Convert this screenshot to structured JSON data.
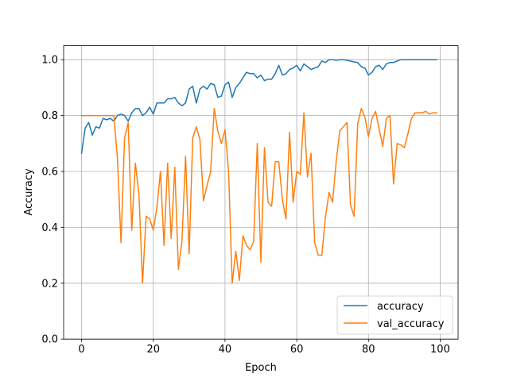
{
  "chart_data": {
    "type": "line",
    "title": "",
    "xlabel": "Epoch",
    "ylabel": "Accuracy",
    "xlim": [
      -5,
      105
    ],
    "ylim": [
      0,
      1.05
    ],
    "xticks": [
      0,
      20,
      40,
      60,
      80,
      100
    ],
    "yticks": [
      0.0,
      0.2,
      0.4,
      0.6,
      0.8,
      1.0
    ],
    "xtick_labels": [
      "0",
      "20",
      "40",
      "60",
      "80",
      "100"
    ],
    "ytick_labels": [
      "0.0",
      "0.2",
      "0.4",
      "0.6",
      "0.8",
      "1.0"
    ],
    "grid": true,
    "legend_position": "lower-right",
    "x": [
      0,
      1,
      2,
      3,
      4,
      5,
      6,
      7,
      8,
      9,
      10,
      11,
      12,
      13,
      14,
      15,
      16,
      17,
      18,
      19,
      20,
      21,
      22,
      23,
      24,
      25,
      26,
      27,
      28,
      29,
      30,
      31,
      32,
      33,
      34,
      35,
      36,
      37,
      38,
      39,
      40,
      41,
      42,
      43,
      44,
      45,
      46,
      47,
      48,
      49,
      50,
      51,
      52,
      53,
      54,
      55,
      56,
      57,
      58,
      59,
      60,
      61,
      62,
      63,
      64,
      65,
      66,
      67,
      68,
      69,
      70,
      71,
      72,
      73,
      74,
      75,
      76,
      77,
      78,
      79,
      80,
      81,
      82,
      83,
      84,
      85,
      86,
      87,
      88,
      89,
      90,
      91,
      92,
      93,
      94,
      95,
      96,
      97,
      98,
      99
    ],
    "series": [
      {
        "name": "accuracy",
        "color": "#1f77b4",
        "values": [
          0.665,
          0.755,
          0.775,
          0.73,
          0.76,
          0.755,
          0.79,
          0.785,
          0.79,
          0.78,
          0.8,
          0.805,
          0.8,
          0.78,
          0.81,
          0.825,
          0.825,
          0.8,
          0.81,
          0.83,
          0.805,
          0.845,
          0.845,
          0.845,
          0.86,
          0.86,
          0.865,
          0.845,
          0.835,
          0.845,
          0.895,
          0.905,
          0.845,
          0.895,
          0.905,
          0.895,
          0.915,
          0.91,
          0.865,
          0.87,
          0.91,
          0.92,
          0.865,
          0.9,
          0.915,
          0.935,
          0.955,
          0.95,
          0.95,
          0.935,
          0.945,
          0.925,
          0.93,
          0.93,
          0.95,
          0.98,
          0.945,
          0.95,
          0.965,
          0.97,
          0.98,
          0.96,
          0.985,
          0.975,
          0.965,
          0.97,
          0.975,
          0.995,
          0.99,
          1.0,
          1.0,
          0.998,
          1.0,
          1.0,
          0.998,
          0.995,
          0.992,
          0.99,
          0.975,
          0.97,
          0.945,
          0.955,
          0.975,
          0.98,
          0.965,
          0.985,
          0.99,
          0.99,
          0.995,
          1.0,
          1.0,
          1.0,
          1.0,
          1.0,
          1.0,
          1.0,
          1.0,
          1.0,
          1.0,
          1.0
        ]
      },
      {
        "name": "val_accuracy",
        "color": "#ff7f0e",
        "values": [
          0.8,
          0.8,
          0.8,
          0.8,
          0.8,
          0.8,
          0.8,
          0.8,
          0.8,
          0.8,
          0.65,
          0.345,
          0.72,
          0.775,
          0.39,
          0.63,
          0.52,
          0.2,
          0.44,
          0.43,
          0.39,
          0.47,
          0.6,
          0.335,
          0.63,
          0.36,
          0.615,
          0.25,
          0.35,
          0.655,
          0.305,
          0.72,
          0.76,
          0.715,
          0.495,
          0.55,
          0.6,
          0.825,
          0.745,
          0.7,
          0.75,
          0.6,
          0.2,
          0.315,
          0.21,
          0.37,
          0.335,
          0.32,
          0.35,
          0.7,
          0.275,
          0.685,
          0.49,
          0.475,
          0.635,
          0.635,
          0.5,
          0.43,
          0.74,
          0.49,
          0.6,
          0.59,
          0.81,
          0.58,
          0.665,
          0.345,
          0.3,
          0.3,
          0.435,
          0.525,
          0.49,
          0.635,
          0.745,
          0.76,
          0.775,
          0.48,
          0.44,
          0.77,
          0.825,
          0.795,
          0.725,
          0.79,
          0.815,
          0.75,
          0.69,
          0.79,
          0.8,
          0.555,
          0.7,
          0.695,
          0.685,
          0.735,
          0.79,
          0.81,
          0.81,
          0.81,
          0.815,
          0.805,
          0.81,
          0.81
        ]
      }
    ]
  }
}
